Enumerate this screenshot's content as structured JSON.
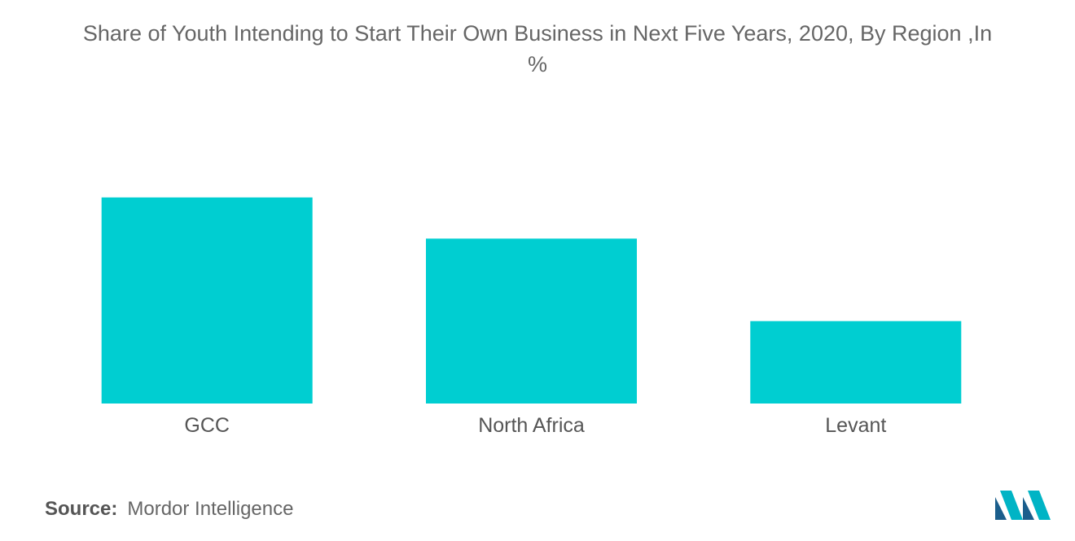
{
  "chart_data": {
    "type": "bar",
    "title_line1": "Share of Youth Intending to Start Their Own Business in Next Five Years, 2020, By Region ,In",
    "title_line2": "%",
    "categories": [
      "GCC",
      "North Africa",
      "Levant"
    ],
    "values": [
      50,
      40,
      20
    ],
    "xlabel": "",
    "ylabel": "",
    "ylim": [
      0,
      60
    ],
    "grid": false,
    "bar_color": "#00CED1"
  },
  "source": {
    "label": "Source:",
    "value": "Mordor Intelligence"
  },
  "logo": {
    "icon": "mordor-intelligence-logo",
    "colors": [
      "#1B5E8C",
      "#00B4C5"
    ]
  }
}
